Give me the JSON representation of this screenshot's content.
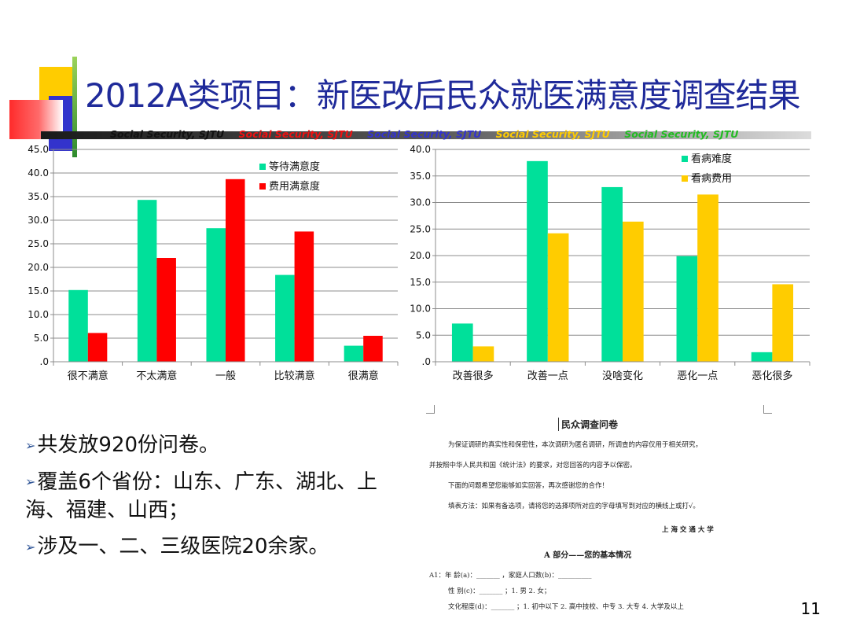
{
  "title": "2012A类项目：新医改后民众就医满意度调查结果",
  "banner": [
    {
      "text": "Social Security, SJTU",
      "color": "#111111"
    },
    {
      "text": "Social Security, SJTU",
      "color": "#ee1111"
    },
    {
      "text": "Social Security, SJTU",
      "color": "#3333cc"
    },
    {
      "text": "Social Security, SJTU",
      "color": "#ffcc00"
    },
    {
      "text": "Social Security, SJTU",
      "color": "#22bb22"
    }
  ],
  "chart_data": [
    {
      "type": "bar",
      "categories": [
        "很不满意",
        "不太满意",
        "一般",
        "比较满意",
        "很满意"
      ],
      "series": [
        {
          "name": "等待满意度",
          "color": "#00e09a",
          "values": [
            15.2,
            34.3,
            28.3,
            18.4,
            3.4
          ]
        },
        {
          "name": "费用满意度",
          "color": "#ff0000",
          "values": [
            6.1,
            22.0,
            38.7,
            27.6,
            5.5
          ]
        }
      ],
      "ylim": [
        0,
        45
      ],
      "yticks": [
        "45.0",
        "40.0",
        "35.0",
        "30.0",
        "25.0",
        "20.0",
        "15.0",
        "10.0",
        "5.0",
        ".0"
      ],
      "legend": "top-right",
      "grid": true
    },
    {
      "type": "bar",
      "categories": [
        "改善很多",
        "改善一点",
        "没啥变化",
        "恶化一点",
        "恶化很多"
      ],
      "series": [
        {
          "name": "看病难度",
          "color": "#00e09a",
          "values": [
            7.2,
            37.8,
            32.9,
            19.9,
            1.8
          ]
        },
        {
          "name": "看病费用",
          "color": "#ffcc00",
          "values": [
            2.9,
            24.2,
            26.4,
            31.5,
            14.6
          ]
        }
      ],
      "ylim": [
        0,
        40
      ],
      "yticks": [
        "40.0",
        "35.0",
        "30.0",
        "25.0",
        "20.0",
        "15.0",
        "10.0",
        "5.0",
        ".0"
      ],
      "legend": "top-right",
      "grid": true
    }
  ],
  "bullets": [
    {
      "text": "共发放920份问卷。"
    },
    {
      "text": "覆盖6个省份：山东、广东、湖北、上海、福建、山西；"
    },
    {
      "text": "涉及一、二、三级医院20余家。"
    }
  ],
  "bullet_marker": "➢",
  "document": {
    "heading": "民众调查问卷",
    "para1": "为保证调研的真实性和保密性，本次调研为匿名调研，所调查的内容仅用于相关研究，",
    "para2": "并按照中华人民共和国《统计法》的要求，对您回答的内容予以保密。",
    "para3": "下面的问题希望您能够如实回答，再次感谢您的合作！",
    "para4": "填表方法：如果有备选项，请将您的选择项所对应的字母填写到对应的横线上或打√。",
    "signature": "上 海 交 通 大 学",
    "section": "A 部分——您的基本情况",
    "q1": "A1：年    龄(a)：_______ ，家庭人口数(b)：__________",
    "q2": "性    别(c)：_______ ；1. 男    2. 女；",
    "q3": "文化程度(d)：_______ ；1. 初中以下  2. 高中技校、中专  3. 大专  4. 大学及以上"
  },
  "page_number": "11"
}
